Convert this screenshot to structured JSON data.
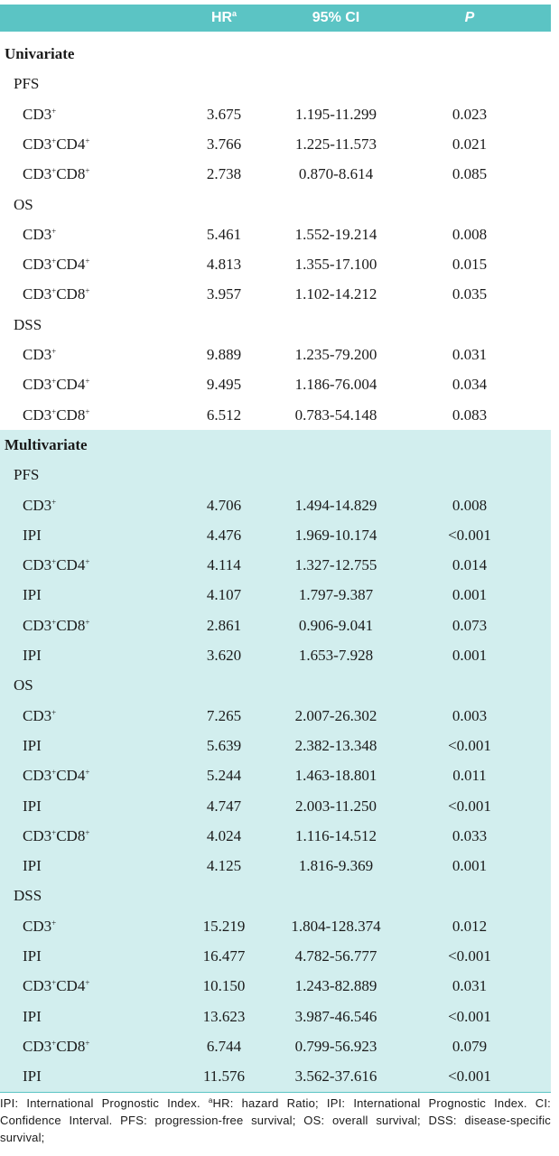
{
  "table": {
    "header": [
      {
        "text": "HR",
        "sup": "a"
      },
      {
        "text": "95% CI"
      },
      {
        "text": "P"
      }
    ],
    "sections": [
      {
        "title": "Univariate",
        "groups": [
          {
            "name": "PFS",
            "rows": [
              [
                "CD3+",
                "3.675",
                "1.195-11.299",
                "0.023"
              ],
              [
                "CD3+CD4+",
                "3.766",
                "1.225-11.573",
                "0.021"
              ],
              [
                "CD3+CD8+",
                "2.738",
                "0.870-8.614",
                "0.085"
              ]
            ]
          },
          {
            "name": "OS",
            "rows": [
              [
                "CD3+",
                "5.461",
                "1.552-19.214",
                "0.008"
              ],
              [
                "CD3+CD4+",
                "4.813",
                "1.355-17.100",
                "0.015"
              ],
              [
                "CD3+CD8+",
                "3.957",
                "1.102-14.212",
                "0.035"
              ]
            ]
          },
          {
            "name": "DSS",
            "rows": [
              [
                "CD3+",
                "9.889",
                "1.235-79.200",
                "0.031"
              ],
              [
                "CD3+CD4+",
                "9.495",
                "1.186-76.004",
                "0.034"
              ],
              [
                "CD3+CD8+",
                "6.512",
                "0.783-54.148",
                "0.083"
              ]
            ]
          }
        ]
      },
      {
        "title": "Multivariate",
        "groups": [
          {
            "name": "PFS",
            "rows": [
              [
                "CD3+",
                "4.706",
                "1.494-14.829",
                "0.008"
              ],
              [
                "IPI",
                "4.476",
                "1.969-10.174",
                "<0.001"
              ],
              [
                "CD3+CD4+",
                "4.114",
                "1.327-12.755",
                "0.014"
              ],
              [
                "IPI",
                "4.107",
                "1.797-9.387",
                "0.001"
              ],
              [
                "CD3+CD8+",
                "2.861",
                "0.906-9.041",
                "0.073"
              ],
              [
                "IPI",
                "3.620",
                "1.653-7.928",
                "0.001"
              ]
            ]
          },
          {
            "name": "OS",
            "rows": [
              [
                "CD3+",
                "7.265",
                "2.007-26.302",
                "0.003"
              ],
              [
                "IPI",
                "5.639",
                "2.382-13.348",
                "<0.001"
              ],
              [
                "CD3+CD4+",
                "5.244",
                "1.463-18.801",
                "0.011"
              ],
              [
                "IPI",
                "4.747",
                "2.003-11.250",
                "<0.001"
              ],
              [
                "CD3+CD8+",
                "4.024",
                "1.116-14.512",
                "0.033"
              ],
              [
                "IPI",
                "4.125",
                "1.816-9.369",
                "0.001"
              ]
            ]
          },
          {
            "name": "DSS",
            "rows": [
              [
                "CD3+",
                "15.219",
                "1.804-128.374",
                "0.012"
              ],
              [
                "IPI",
                "16.477",
                "4.782-56.777",
                "<0.001"
              ],
              [
                "CD3+CD4+",
                "10.150",
                "1.243-82.889",
                "0.031"
              ],
              [
                "IPI",
                "13.623",
                "3.987-46.546",
                "<0.001"
              ],
              [
                "CD3+CD8+",
                "6.744",
                "0.799-56.923",
                "0.079"
              ],
              [
                "IPI",
                "11.576",
                "3.562-37.616",
                "<0.001"
              ]
            ]
          }
        ]
      }
    ],
    "footnote": {
      "before": "IPI: International Prognostic Index. ",
      "sup": "a",
      "after": "HR: hazard Ratio; IPI: International Prognostic Index. CI: Confidence Interval. PFS: progression-free survival; OS: overall survival; DSS: disease-specific survival;"
    }
  }
}
